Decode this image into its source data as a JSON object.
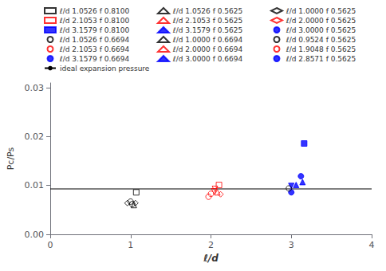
{
  "chart_data": {
    "type": "scatter",
    "xlabel": "ℓ/d",
    "ylabel": "Pc/Ps",
    "xlim": [
      0,
      4
    ],
    "ylim": [
      0.0,
      0.031
    ],
    "xticks": [
      0,
      1,
      2,
      3,
      4
    ],
    "yticks": [
      {
        "value": 0,
        "label": "0.00"
      },
      0.01,
      0.02,
      0.03
    ],
    "grid": false,
    "legend": "top",
    "reference_line": {
      "y": 0.0093,
      "label": "ideal expansion pressure",
      "color": "black"
    },
    "points": [
      {
        "x": 1.07,
        "y": 0.0086,
        "color": "black",
        "marker": "square",
        "filled": false
      },
      {
        "x": 2.1,
        "y": 0.0101,
        "color": "red",
        "marker": "square",
        "filled": false
      },
      {
        "x": 3.16,
        "y": 0.0186,
        "color": "blue",
        "marker": "square",
        "filled": true
      },
      {
        "x": 1.0,
        "y": 0.0067,
        "color": "black",
        "marker": "circle",
        "filled": false
      },
      {
        "x": 1.02,
        "y": 0.0062,
        "color": "black",
        "marker": "circle",
        "filled": false
      },
      {
        "x": 1.04,
        "y": 0.006,
        "color": "black",
        "marker": "triangle-up",
        "filled": false
      },
      {
        "x": 2.0,
        "y": 0.0083,
        "color": "red",
        "marker": "circle",
        "filled": false
      },
      {
        "x": 2.04,
        "y": 0.0088,
        "color": "red",
        "marker": "triangle-down",
        "filled": false
      },
      {
        "x": 2.08,
        "y": 0.0086,
        "color": "red",
        "marker": "triangle-up",
        "filled": false
      },
      {
        "x": 3.0,
        "y": 0.0099,
        "color": "blue",
        "marker": "triangle-down",
        "filled": true
      },
      {
        "x": 3.06,
        "y": 0.0101,
        "color": "blue",
        "marker": "triangle-up",
        "filled": true
      },
      {
        "x": 1.06,
        "y": 0.0064,
        "color": "black",
        "marker": "diamond",
        "filled": false
      },
      {
        "x": 2.12,
        "y": 0.0082,
        "color": "red",
        "marker": "diamond",
        "filled": false
      },
      {
        "x": 3.14,
        "y": 0.0107,
        "color": "blue",
        "marker": "triangle-up",
        "filled": true
      },
      {
        "x": 0.96,
        "y": 0.0064,
        "color": "black",
        "marker": "diamond",
        "filled": false
      },
      {
        "x": 1.97,
        "y": 0.0077,
        "color": "red",
        "marker": "circle",
        "filled": false
      },
      {
        "x": 3.0,
        "y": 0.0086,
        "color": "blue",
        "marker": "circle",
        "filled": true
      },
      {
        "x": 2.97,
        "y": 0.0094,
        "color": "black",
        "marker": "circle",
        "filled": false
      },
      {
        "x": 2.05,
        "y": 0.0093,
        "color": "red",
        "marker": "triangle-down",
        "filled": false
      },
      {
        "x": 3.12,
        "y": 0.0119,
        "color": "blue",
        "marker": "circle",
        "filled": true
      }
    ],
    "legend_entries": [
      {
        "label": "ℓ/d 1.0526 f 0.8100",
        "color": "black",
        "marker": "square",
        "filled": false
      },
      {
        "label": "ℓ/d 2.1053 f 0.8100",
        "color": "red",
        "marker": "square",
        "filled": false
      },
      {
        "label": "ℓ/d 3.1579 f 0.8100",
        "color": "blue",
        "marker": "square",
        "filled": true
      },
      {
        "label": "ℓ/d 1.0526 f 0.6694",
        "color": "black",
        "marker": "circle",
        "filled": false
      },
      {
        "label": "ℓ/d 2.1053 f 0.6694",
        "color": "red",
        "marker": "circle",
        "filled": false
      },
      {
        "label": "ℓ/d 3.1579 f 0.6694",
        "color": "blue",
        "marker": "circle",
        "filled": true
      },
      {
        "label": "ℓ/d 1.0526 f 0.5625",
        "color": "black",
        "marker": "triangle-up",
        "filled": false
      },
      {
        "label": "ℓ/d 2.1053 f 0.5625",
        "color": "red",
        "marker": "triangle-up",
        "filled": false
      },
      {
        "label": "ℓ/d 3.1579 f 0.5625",
        "color": "blue",
        "marker": "triangle-up",
        "filled": true
      },
      {
        "label": "ℓ/d 1.0000 f 0.6694",
        "color": "black",
        "marker": "triangle-down",
        "filled": false
      },
      {
        "label": "ℓ/d 2.0000 f 0.6694",
        "color": "red",
        "marker": "triangle-down",
        "filled": false
      },
      {
        "label": "ℓ/d 3.0000 f 0.6694",
        "color": "blue",
        "marker": "triangle-down",
        "filled": true
      },
      {
        "label": "ℓ/d 1.0000 f 0.5625",
        "color": "black",
        "marker": "diamond",
        "filled": false
      },
      {
        "label": "ℓ/d 2.0000 f 0.5625",
        "color": "red",
        "marker": "diamond",
        "filled": false
      },
      {
        "label": "ℓ/d 3.0000 f 0.5625",
        "color": "blue",
        "marker": "circle",
        "filled": true
      },
      {
        "label": "ℓ/d 0.9524 f 0.5625",
        "color": "black",
        "marker": "circle",
        "filled": false
      },
      {
        "label": "ℓ/d 1.9048 f 0.5625",
        "color": "red",
        "marker": "circle",
        "filled": false
      },
      {
        "label": "ℓ/d 2.8571 f 0.5625",
        "color": "blue",
        "marker": "circle",
        "filled": true
      }
    ]
  }
}
